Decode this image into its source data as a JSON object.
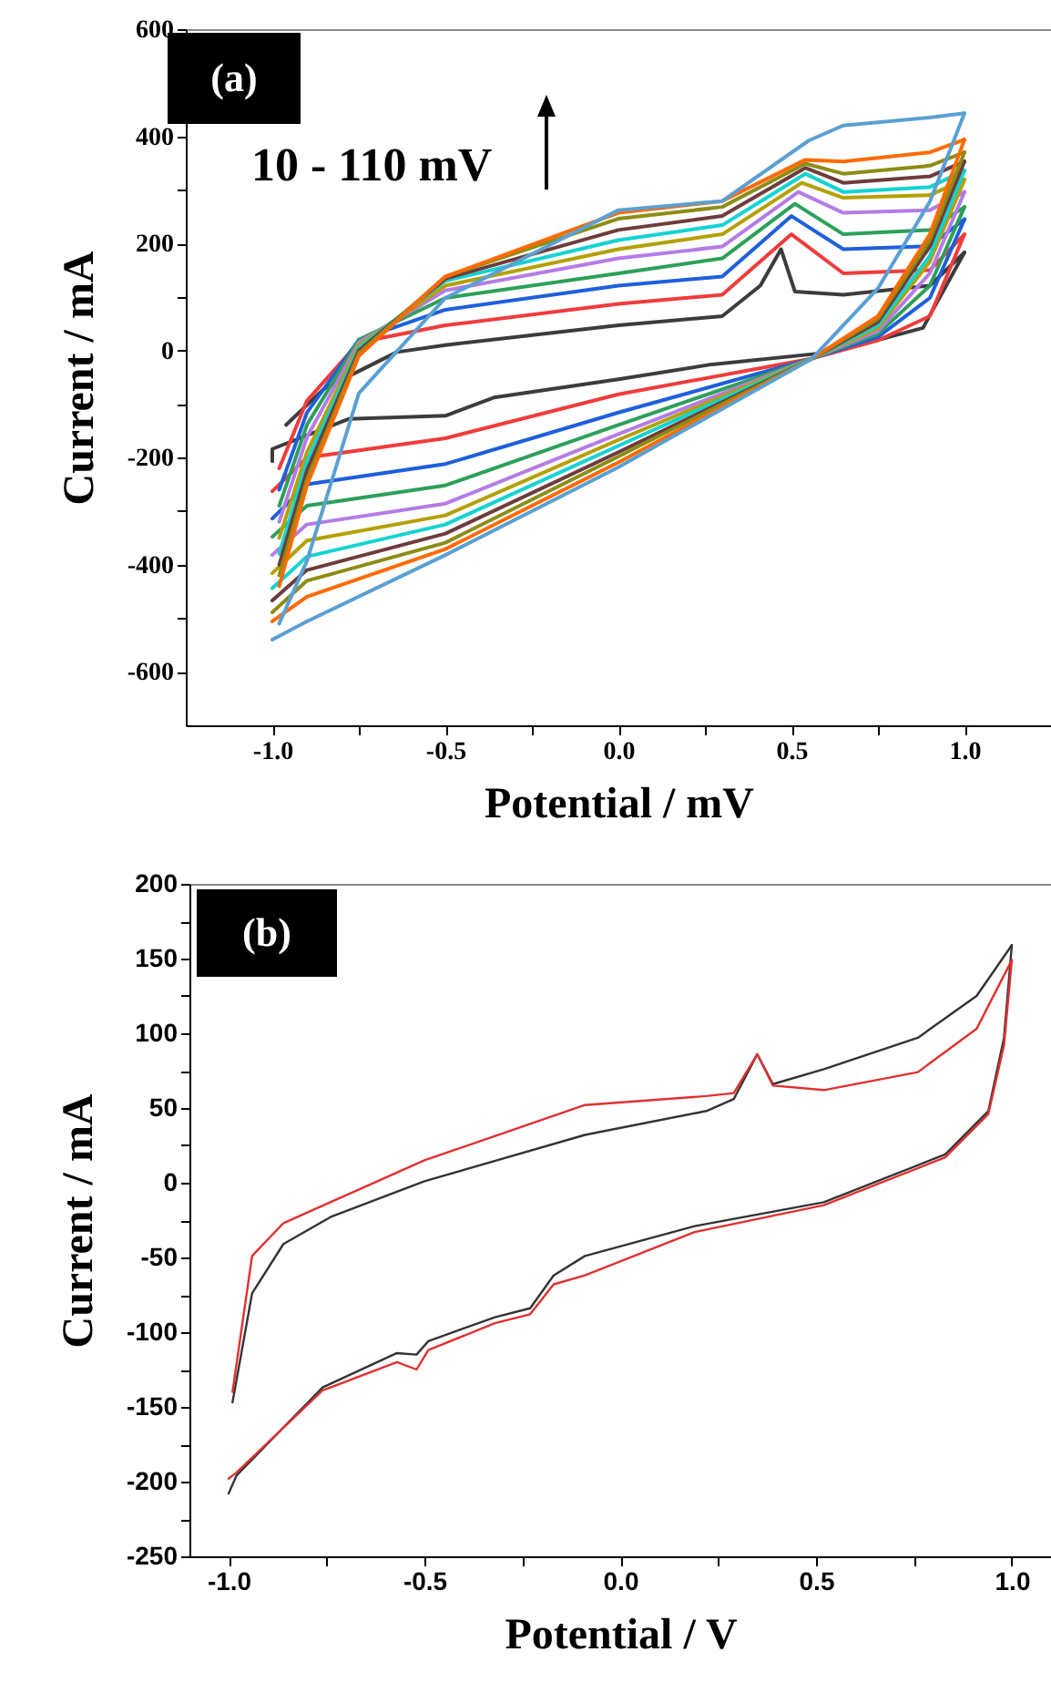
{
  "chart_data": [
    {
      "type": "line",
      "xlabel": "Potential / mV",
      "ylabel": "Current / mA",
      "annotations": [
        "(a)",
        "10 - 110 mV"
      ],
      "xlim": [
        -1.25,
        1.25
      ],
      "xticks": [
        {
          "value": -1,
          "label": "-1.0"
        },
        {
          "value": -0.75,
          "label": null
        },
        {
          "value": -0.5,
          "label": "-0.5"
        },
        {
          "value": -0.25,
          "label": null
        },
        {
          "value": 0,
          "label": "0.0"
        },
        {
          "value": 0.25,
          "label": null
        },
        {
          "value": 0.5,
          "label": "0.5"
        },
        {
          "value": 0.75,
          "label": null
        },
        {
          "value": 1,
          "label": "1.0"
        }
      ],
      "ylim": [
        -700,
        600
      ],
      "yticks": [
        -600,
        {
          "value": -500,
          "label": null
        },
        -400,
        {
          "value": -300,
          "label": null
        },
        -200,
        {
          "value": -100,
          "label": null
        },
        0,
        {
          "value": 100,
          "label": null
        },
        200,
        {
          "value": 300,
          "label": null
        },
        400,
        {
          "value": 500,
          "label": null
        },
        600
      ],
      "series": [
        {
          "color": "#3c3c3c",
          "x": [
            -0.96,
            -0.85,
            -0.64,
            -0.5,
            0,
            0.3,
            0.41,
            0.47,
            0.51,
            0.65,
            0.9,
            1
          ],
          "values": [
            -139,
            -71,
            -3,
            10,
            47,
            64,
            121,
            189,
            110,
            104,
            121,
            183
          ]
        },
        {
          "color": "#3c3c3c",
          "x": [
            -1,
            -1,
            -0.78,
            -0.5,
            -0.36,
            0,
            0.27,
            0.62,
            0.88,
            1
          ],
          "values": [
            -207,
            -184,
            -128,
            -122,
            -88,
            -54,
            -26,
            -3,
            42,
            183
          ]
        },
        {
          "color": "#f03c3c",
          "x": [
            -0.98,
            -0.9,
            -0.75,
            -0.5,
            0,
            0.3,
            0.5,
            0.65,
            0.9,
            1
          ],
          "values": [
            -220,
            -94,
            15,
            47,
            87,
            104,
            217,
            144,
            150,
            217
          ]
        },
        {
          "color": "#f03c3c",
          "x": [
            -1,
            -0.9,
            -0.5,
            0,
            0.56,
            0.75,
            0.9,
            1
          ],
          "values": [
            -263,
            -200,
            -164,
            -82,
            -15,
            19,
            64,
            217
          ]
        },
        {
          "color": "#1e5fdc",
          "x": [
            -0.98,
            -0.9,
            -0.75,
            -0.5,
            0,
            0.3,
            0.5,
            0.65,
            0.9,
            1
          ],
          "values": [
            -260,
            -116,
            20,
            76,
            121,
            138,
            251,
            189,
            195,
            245
          ]
        },
        {
          "color": "#1e5fdc",
          "x": [
            -1,
            -0.9,
            -0.5,
            0,
            0.56,
            0.75,
            0.9,
            1
          ],
          "values": [
            -314,
            -250,
            -212,
            -116,
            -15,
            25,
            98,
            245
          ]
        },
        {
          "color": "#2ca05a",
          "x": [
            -0.98,
            -0.9,
            -0.75,
            -0.5,
            0,
            0.3,
            0.51,
            0.65,
            0.9,
            1
          ],
          "values": [
            -290,
            -139,
            20,
            98,
            144,
            172,
            274,
            217,
            225,
            268
          ]
        },
        {
          "color": "#2ca05a",
          "x": [
            -1,
            -0.9,
            -0.5,
            0,
            0.56,
            0.75,
            0.9,
            1
          ],
          "values": [
            -348,
            -290,
            -252,
            -139,
            -15,
            31,
            121,
            268
          ]
        },
        {
          "color": "#b47ce6",
          "x": [
            -0.98,
            -0.9,
            -0.75,
            -0.5,
            0,
            0.3,
            0.52,
            0.65,
            0.9,
            1
          ],
          "values": [
            -320,
            -162,
            15,
            112,
            172,
            194,
            296,
            257,
            262,
            296
          ]
        },
        {
          "color": "#b47ce6",
          "x": [
            -1,
            -0.9,
            -0.5,
            0,
            0.56,
            0.75,
            0.9,
            1
          ],
          "values": [
            -382,
            -325,
            -286,
            -156,
            -15,
            36,
            144,
            296
          ]
        },
        {
          "color": "#b4a000",
          "x": [
            -0.98,
            -0.9,
            -0.75,
            -0.5,
            0,
            0.3,
            0.53,
            0.65,
            0.9,
            1
          ],
          "values": [
            -350,
            -190,
            10,
            121,
            189,
            217,
            313,
            285,
            290,
            319
          ]
        },
        {
          "color": "#b4a000",
          "x": [
            -1,
            -0.9,
            -0.5,
            0,
            0.56,
            0.75,
            0.9,
            1
          ],
          "values": [
            -416,
            -355,
            -308,
            -167,
            -15,
            42,
            166,
            319
          ]
        },
        {
          "color": "#14d2d2",
          "x": [
            -0.98,
            -0.9,
            -0.75,
            -0.5,
            0,
            0.3,
            0.54,
            0.65,
            0.9,
            1
          ],
          "values": [
            -380,
            -207,
            5,
            130,
            206,
            234,
            330,
            296,
            305,
            336
          ]
        },
        {
          "color": "#14d2d2",
          "x": [
            -1,
            -0.9,
            -0.5,
            0,
            0.56,
            0.75,
            0.9,
            1
          ],
          "values": [
            -444,
            -385,
            -325,
            -178,
            -15,
            47,
            177,
            336
          ]
        },
        {
          "color": "#6e3c3c",
          "x": [
            -0.98,
            -0.9,
            -0.75,
            -0.5,
            0,
            0.3,
            0.54,
            0.65,
            0.9,
            1
          ],
          "values": [
            -400,
            -224,
            0,
            134,
            225,
            251,
            341,
            313,
            325,
            353
          ]
        },
        {
          "color": "#6e3c3c",
          "x": [
            -1,
            -0.9,
            -0.5,
            0,
            0.56,
            0.75,
            0.9,
            1
          ],
          "values": [
            -467,
            -410,
            -342,
            -190,
            -15,
            53,
            194,
            353
          ]
        },
        {
          "color": "#8c8c14",
          "x": [
            -0.98,
            -0.9,
            -0.75,
            -0.5,
            0,
            0.3,
            0.54,
            0.65,
            0.9,
            1
          ],
          "values": [
            -420,
            -241,
            -5,
            138,
            246,
            268,
            349,
            330,
            345,
            370
          ]
        },
        {
          "color": "#8c8c14",
          "x": [
            -1,
            -0.9,
            -0.5,
            0,
            0.56,
            0.75,
            0.9,
            1
          ],
          "values": [
            -489,
            -430,
            -359,
            -198,
            -15,
            59,
            206,
            370
          ]
        },
        {
          "color": "#ff6a00",
          "x": [
            -0.98,
            -0.9,
            -0.75,
            -0.5,
            0,
            0.3,
            0.54,
            0.65,
            0.9,
            1
          ],
          "values": [
            -440,
            -252,
            -10,
            138,
            257,
            279,
            356,
            353,
            370,
            394
          ]
        },
        {
          "color": "#ff6a00",
          "x": [
            -1,
            -0.9,
            -0.5,
            0,
            0.56,
            0.75,
            0.9,
            1
          ],
          "values": [
            -506,
            -460,
            -371,
            -209,
            -15,
            64,
            217,
            394
          ]
        },
        {
          "color": "#5aa0d2",
          "x": [
            -0.98,
            -0.9,
            -0.75,
            -0.5,
            0,
            0.3,
            0.55,
            0.65,
            0.9,
            1
          ],
          "values": [
            -510,
            -393,
            -80,
            98,
            262,
            279,
            392,
            420,
            435,
            443
          ]
        },
        {
          "color": "#5aa0d2",
          "x": [
            -1,
            -0.9,
            -0.5,
            0,
            0.56,
            0.75,
            0.9,
            1
          ],
          "values": [
            -540,
            -506,
            -382,
            -218,
            -15,
            116,
            278,
            443
          ]
        }
      ]
    },
    {
      "type": "line",
      "xlabel": "Potential / V",
      "ylabel": "Current / mA",
      "annotations": [
        "(b)"
      ],
      "xlim": [
        -1.1,
        1.1
      ],
      "xticks": [
        {
          "value": -1,
          "label": "-1.0"
        },
        {
          "value": -0.75,
          "label": null
        },
        {
          "value": -0.5,
          "label": "-0.5"
        },
        {
          "value": -0.25,
          "label": null
        },
        {
          "value": 0,
          "label": "0.0"
        },
        {
          "value": 0.25,
          "label": null
        },
        {
          "value": 0.5,
          "label": "0.5"
        },
        {
          "value": 0.75,
          "label": null
        },
        {
          "value": 1,
          "label": "1.0"
        }
      ],
      "ylim": [
        -250,
        200
      ],
      "yticks": [
        -250,
        {
          "value": -225,
          "label": null
        },
        -200,
        {
          "value": -175,
          "label": null
        },
        -150,
        {
          "value": -125,
          "label": null
        },
        -100,
        {
          "value": -75,
          "label": null
        },
        -50,
        {
          "value": -25,
          "label": null
        },
        0,
        {
          "value": 25,
          "label": null
        },
        50,
        {
          "value": 75,
          "label": null
        },
        100,
        {
          "value": 125,
          "label": null
        },
        150,
        {
          "value": 175,
          "label": null
        },
        200
      ],
      "series": [
        {
          "color": "#333333",
          "x": [
            -0.99,
            -0.94,
            -0.86,
            -0.74,
            -0.5,
            -0.09,
            0.22,
            0.29,
            0.35,
            0.39,
            0.52,
            0.76,
            0.91,
            1
          ],
          "values": [
            -147,
            -74,
            -41,
            -23,
            1,
            32,
            48,
            56,
            86,
            66,
            76,
            97,
            125,
            159
          ]
        },
        {
          "color": "#333333",
          "x": [
            -1,
            -0.98,
            -0.76,
            -0.57,
            -0.52,
            -0.49,
            -0.32,
            -0.23,
            -0.17,
            -0.09,
            0.19,
            0.52,
            0.83,
            0.94,
            0.98,
            1
          ],
          "values": [
            -208,
            -196,
            -137,
            -114,
            -115,
            -106,
            -90,
            -84,
            -62,
            -49,
            -29,
            -13,
            19,
            48,
            97,
            159
          ]
        },
        {
          "color": "#e03030",
          "x": [
            -0.99,
            -0.94,
            -0.86,
            -0.74,
            -0.5,
            -0.09,
            0.22,
            0.29,
            0.35,
            0.39,
            0.52,
            0.76,
            0.91,
            1
          ],
          "values": [
            -140,
            -49,
            -27,
            -13,
            15,
            52,
            58,
            60,
            86,
            65,
            62,
            74,
            103,
            149
          ]
        },
        {
          "color": "#e03030",
          "x": [
            -1,
            -0.98,
            -0.76,
            -0.57,
            -0.52,
            -0.49,
            -0.32,
            -0.23,
            -0.17,
            -0.09,
            0.19,
            0.52,
            0.83,
            0.94,
            0.98,
            1
          ],
          "values": [
            -198,
            -194,
            -139,
            -120,
            -125,
            -112,
            -94,
            -88,
            -68,
            -62,
            -33,
            -15,
            17,
            46,
            92,
            149
          ]
        }
      ]
    }
  ]
}
